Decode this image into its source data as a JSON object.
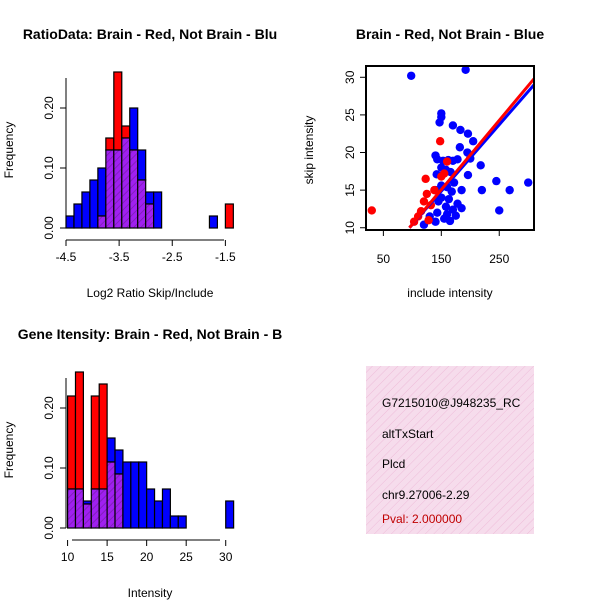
{
  "colors": {
    "brain": "#ff0000",
    "not_brain": "#0000ff",
    "overlap": "#a020f0",
    "info_bg": "#f6dcec",
    "pval": "#c00000"
  },
  "chart_data": [
    {
      "type": "bar",
      "id": "ratio-hist",
      "title": "RatioData: Brain - Red, Not Brain - Blu",
      "xlabel": "Log2 Ratio Skip/Include",
      "ylabel": "Frequency",
      "xlim": [
        -4.5,
        -1.3
      ],
      "ylim": [
        0,
        0.27
      ],
      "xticks": [
        -4.5,
        -3.5,
        -2.5,
        -1.5
      ],
      "xtick_labels": [
        "-4.5",
        "-3.5",
        "-2.5",
        "-1.5"
      ],
      "yticks": [
        0,
        0.1,
        0.2
      ],
      "ytick_labels": [
        "0.00",
        "0.10",
        "0.20"
      ],
      "bin_edges": [
        -4.5,
        -4.35,
        -4.2,
        -4.05,
        -3.9,
        -3.75,
        -3.6,
        -3.45,
        -3.3,
        -3.15,
        -3.0,
        -2.85,
        -2.7,
        -2.55,
        -2.4,
        -2.25,
        -2.1,
        -1.95,
        -1.8,
        -1.65,
        -1.5,
        -1.35
      ],
      "series": [
        {
          "name": "Brain",
          "values": [
            0,
            0,
            0,
            0,
            0.02,
            0.15,
            0.26,
            0.17,
            0.13,
            0.08,
            0.04,
            0,
            0,
            0,
            0,
            0,
            0,
            0,
            0,
            0,
            0.04
          ]
        },
        {
          "name": "Not Brain",
          "values": [
            0.02,
            0.04,
            0.06,
            0.08,
            0.1,
            0.13,
            0.13,
            0.15,
            0.2,
            0.13,
            0.06,
            0.06,
            0,
            0,
            0,
            0,
            0,
            0,
            0.02,
            0,
            0
          ]
        }
      ]
    },
    {
      "type": "scatter",
      "id": "intensity-scatter",
      "title": "Brain - Red, Not Brain - Blue",
      "xlabel": "include intensity",
      "ylabel": "skip intensity",
      "xlim": [
        20,
        310
      ],
      "ylim": [
        9.7,
        31.5
      ],
      "xticks": [
        50,
        150,
        250
      ],
      "yticks": [
        10,
        15,
        20,
        25,
        30
      ],
      "series": [
        {
          "name": "Brain",
          "points": [
            [
              30,
              12.3
            ],
            [
              103,
              10.8
            ],
            [
              110,
              11.5
            ],
            [
              115,
              12.2
            ],
            [
              120,
              13.5
            ],
            [
              123,
              16.5
            ],
            [
              125,
              14.5
            ],
            [
              128,
              11.0
            ],
            [
              132,
              13.0
            ],
            [
              138,
              15.0
            ],
            [
              148,
              21.5
            ],
            [
              150,
              16.8
            ],
            [
              155,
              17.2
            ],
            [
              160,
              18.8
            ]
          ]
        },
        {
          "name": "Not Brain",
          "points": [
            [
              98,
              30.2
            ],
            [
              192,
              31.0
            ],
            [
              150,
              25.2
            ],
            [
              150,
              24.7
            ],
            [
              147,
              24.0
            ],
            [
              170,
              23.6
            ],
            [
              183,
              23.0
            ],
            [
              196,
              22.5
            ],
            [
              182,
              20.7
            ],
            [
              205,
              21.5
            ],
            [
              195,
              20.0
            ],
            [
              140,
              19.6
            ],
            [
              143,
              19.1
            ],
            [
              162,
              19.0
            ],
            [
              153,
              18.9
            ],
            [
              170,
              18.9
            ],
            [
              178,
              19.1
            ],
            [
              200,
              19.2
            ],
            [
              218,
              18.3
            ],
            [
              150,
              18.0
            ],
            [
              158,
              17.7
            ],
            [
              166,
              17.4
            ],
            [
              142,
              17.1
            ],
            [
              150,
              16.9
            ],
            [
              196,
              17.0
            ],
            [
              172,
              16.0
            ],
            [
              245,
              16.2
            ],
            [
              150,
              15.6
            ],
            [
              160,
              15.4
            ],
            [
              140,
              15.0
            ],
            [
              168,
              14.8
            ],
            [
              185,
              15.0
            ],
            [
              220,
              15.0
            ],
            [
              268,
              15.0
            ],
            [
              150,
              14.0
            ],
            [
              163,
              13.8
            ],
            [
              145,
              13.5
            ],
            [
              178,
              13.2
            ],
            [
              158,
              12.8
            ],
            [
              170,
              12.4
            ],
            [
              185,
              12.6
            ],
            [
              250,
              12.3
            ],
            [
              143,
              12.0
            ],
            [
              160,
              11.8
            ],
            [
              130,
              11.5
            ],
            [
              175,
              11.6
            ],
            [
              155,
              11.2
            ],
            [
              140,
              10.8
            ],
            [
              165,
              10.9
            ],
            [
              300,
              16.0
            ],
            [
              120,
              10.4
            ]
          ]
        }
      ],
      "fit_lines": [
        {
          "name": "Brain",
          "from": [
            95,
            10.0
          ],
          "to": [
            310,
            29.8
          ]
        },
        {
          "name": "Not Brain",
          "from": [
            95,
            10.0
          ],
          "to": [
            310,
            29.0
          ]
        }
      ]
    },
    {
      "type": "bar",
      "id": "intensity-hist",
      "title": "Gene Itensity: Brain - Red, Not Brain - B",
      "xlabel": "Intensity",
      "ylabel": "Frequency",
      "xlim": [
        9.8,
        31.3
      ],
      "ylim": [
        0,
        0.27
      ],
      "xticks": [
        10,
        15,
        20,
        25,
        30
      ],
      "xtick_labels": [
        "10",
        "15",
        "20",
        "25",
        "30"
      ],
      "yticks": [
        0,
        0.1,
        0.2
      ],
      "ytick_labels": [
        "0.00",
        "0.10",
        "0.20"
      ],
      "bin_edges": [
        10,
        11,
        12,
        13,
        14,
        15,
        16,
        17,
        18,
        19,
        20,
        21,
        22,
        23,
        24,
        25,
        26,
        27,
        28,
        29,
        30,
        31
      ],
      "series": [
        {
          "name": "Brain",
          "values": [
            0.22,
            0.26,
            0.04,
            0.22,
            0.24,
            0.11,
            0.09,
            0,
            0,
            0,
            0,
            0,
            0,
            0,
            0,
            0,
            0,
            0,
            0,
            0,
            0
          ]
        },
        {
          "name": "Not Brain",
          "values": [
            0.065,
            0.065,
            0.045,
            0.065,
            0.065,
            0.15,
            0.13,
            0.11,
            0.11,
            0.11,
            0.065,
            0.045,
            0.065,
            0.02,
            0.02,
            0,
            0,
            0,
            0,
            0,
            0.045
          ]
        }
      ]
    }
  ],
  "info_panel": {
    "id_text": "G7215010@J948235_RC",
    "event_type": "altTxStart",
    "gene": "Plcd",
    "coords": "chr9.27006-2.29",
    "pval": "Pval: 2.000000"
  }
}
